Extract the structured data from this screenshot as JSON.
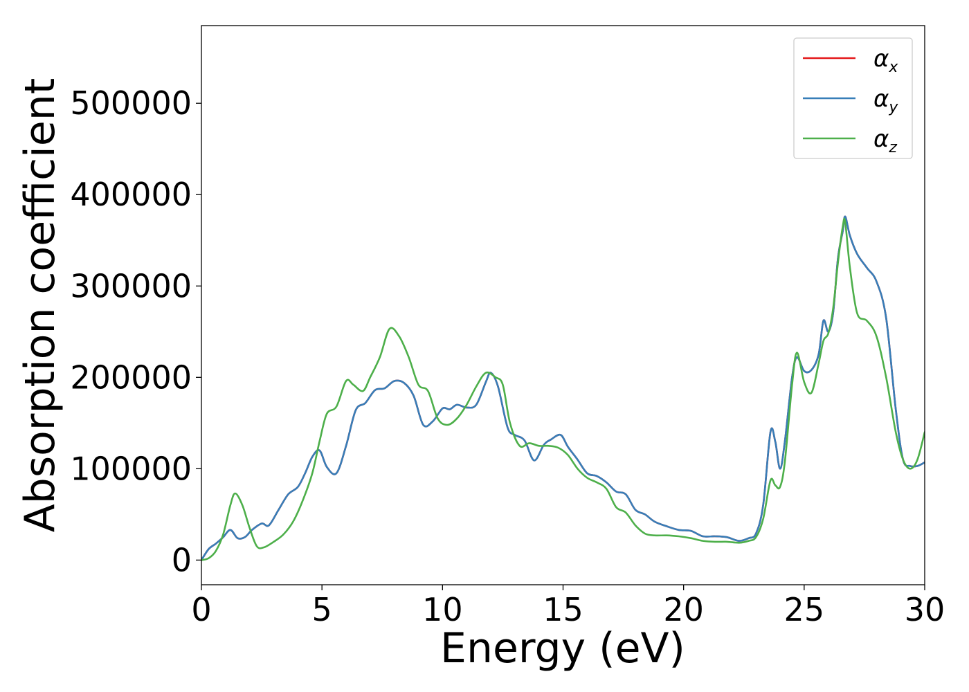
{
  "chart_data": {
    "type": "line",
    "title": "",
    "xlabel": "Energy (eV)",
    "ylabel": "Absorption coefficient",
    "xlim": [
      0,
      30
    ],
    "ylim": [
      -27000,
      585000
    ],
    "x_ticks": [
      0,
      5,
      10,
      15,
      20,
      25,
      30
    ],
    "y_ticks": [
      0,
      100000,
      200000,
      300000,
      400000,
      500000
    ],
    "grid": false,
    "legend_position": "top-right",
    "series": [
      {
        "name": "α_x",
        "legend_base": "α",
        "legend_sub": "x",
        "color": "#e41a1c",
        "x": [
          0,
          0.3,
          0.6,
          0.9,
          1.2,
          1.5,
          1.8,
          2.1,
          2.5,
          2.8,
          3.2,
          3.6,
          4.0,
          4.3,
          4.6,
          4.9,
          5.2,
          5.6,
          6.0,
          6.4,
          6.8,
          7.2,
          7.6,
          8.0,
          8.4,
          8.8,
          9.2,
          9.6,
          10.0,
          10.3,
          10.6,
          11.0,
          11.4,
          11.8,
          12.0,
          12.3,
          12.7,
          13.0,
          13.4,
          13.8,
          14.2,
          14.5,
          14.9,
          15.2,
          15.6,
          16.0,
          16.4,
          16.8,
          17.2,
          17.6,
          18.0,
          18.4,
          18.8,
          19.3,
          19.8,
          20.3,
          20.8,
          21.3,
          21.8,
          22.3,
          22.7,
          23.0,
          23.3,
          23.6,
          23.8,
          24.0,
          24.2,
          24.5,
          24.7,
          25.0,
          25.3,
          25.6,
          25.8,
          26.0,
          26.2,
          26.4,
          26.6,
          26.7,
          26.9,
          27.2,
          27.6,
          28.0,
          28.4,
          28.8,
          29.1,
          29.4,
          29.7,
          30.0
        ],
        "values": [
          0,
          12000,
          18000,
          25000,
          33000,
          24000,
          25000,
          33000,
          40000,
          38000,
          55000,
          72000,
          80000,
          95000,
          113000,
          120000,
          102000,
          95000,
          125000,
          164000,
          172000,
          186000,
          188000,
          196000,
          194000,
          180000,
          148000,
          152000,
          166000,
          165000,
          170000,
          167000,
          170000,
          195000,
          205000,
          190000,
          145000,
          137000,
          131000,
          109000,
          126000,
          132000,
          137000,
          124000,
          110000,
          95000,
          92000,
          85000,
          75000,
          72000,
          55000,
          50000,
          42000,
          37000,
          33000,
          32000,
          26000,
          26000,
          25000,
          21000,
          24000,
          29000,
          60000,
          140000,
          130000,
          100000,
          130000,
          200000,
          222000,
          207000,
          208000,
          225000,
          262000,
          250000,
          270000,
          330000,
          360000,
          376000,
          355000,
          335000,
          320000,
          305000,
          265000,
          165000,
          110000,
          103000,
          103000,
          107000
        ]
      },
      {
        "name": "α_y",
        "legend_base": "α",
        "legend_sub": "y",
        "color": "#377eb8",
        "x": [
          0,
          0.3,
          0.6,
          0.9,
          1.2,
          1.5,
          1.8,
          2.1,
          2.5,
          2.8,
          3.2,
          3.6,
          4.0,
          4.3,
          4.6,
          4.9,
          5.2,
          5.6,
          6.0,
          6.4,
          6.8,
          7.2,
          7.6,
          8.0,
          8.4,
          8.8,
          9.2,
          9.6,
          10.0,
          10.3,
          10.6,
          11.0,
          11.4,
          11.8,
          12.0,
          12.3,
          12.7,
          13.0,
          13.4,
          13.8,
          14.2,
          14.5,
          14.9,
          15.2,
          15.6,
          16.0,
          16.4,
          16.8,
          17.2,
          17.6,
          18.0,
          18.4,
          18.8,
          19.3,
          19.8,
          20.3,
          20.8,
          21.3,
          21.8,
          22.3,
          22.7,
          23.0,
          23.3,
          23.6,
          23.8,
          24.0,
          24.2,
          24.5,
          24.7,
          25.0,
          25.3,
          25.6,
          25.8,
          26.0,
          26.2,
          26.4,
          26.6,
          26.7,
          26.9,
          27.2,
          27.6,
          28.0,
          28.4,
          28.8,
          29.1,
          29.4,
          29.7,
          30.0
        ],
        "values": [
          0,
          12000,
          18000,
          25000,
          33000,
          24000,
          25000,
          33000,
          40000,
          38000,
          55000,
          72000,
          80000,
          95000,
          113000,
          120000,
          102000,
          95000,
          125000,
          164000,
          172000,
          186000,
          188000,
          196000,
          194000,
          180000,
          148000,
          152000,
          166000,
          165000,
          170000,
          167000,
          170000,
          195000,
          205000,
          190000,
          145000,
          137000,
          131000,
          109000,
          126000,
          132000,
          137000,
          124000,
          110000,
          95000,
          92000,
          85000,
          75000,
          72000,
          55000,
          50000,
          42000,
          37000,
          33000,
          32000,
          26000,
          26000,
          25000,
          21000,
          24000,
          29000,
          60000,
          140000,
          130000,
          100000,
          130000,
          200000,
          222000,
          207000,
          208000,
          225000,
          262000,
          250000,
          270000,
          330000,
          360000,
          376000,
          355000,
          335000,
          320000,
          305000,
          265000,
          165000,
          110000,
          103000,
          103000,
          107000
        ]
      },
      {
        "name": "α_z",
        "legend_base": "α",
        "legend_sub": "z",
        "color": "#4daf4a",
        "x": [
          0,
          0.3,
          0.6,
          0.9,
          1.2,
          1.4,
          1.7,
          2.0,
          2.3,
          2.6,
          3.0,
          3.4,
          3.8,
          4.2,
          4.6,
          4.9,
          5.2,
          5.6,
          6.0,
          6.3,
          6.7,
          7.0,
          7.4,
          7.8,
          8.2,
          8.6,
          9.0,
          9.4,
          9.8,
          10.2,
          10.6,
          11.0,
          11.4,
          11.8,
          12.2,
          12.5,
          12.8,
          13.2,
          13.6,
          14.0,
          14.4,
          14.8,
          15.2,
          15.6,
          16.0,
          16.4,
          16.8,
          17.2,
          17.6,
          18.0,
          18.4,
          18.8,
          19.3,
          19.8,
          20.3,
          20.8,
          21.3,
          21.8,
          22.3,
          22.7,
          23.0,
          23.3,
          23.6,
          23.8,
          24.0,
          24.2,
          24.5,
          24.7,
          25.0,
          25.3,
          25.6,
          25.8,
          26.0,
          26.2,
          26.4,
          26.6,
          26.7,
          26.9,
          27.2,
          27.6,
          28.0,
          28.4,
          28.8,
          29.1,
          29.4,
          29.7,
          30.0
        ],
        "values": [
          0,
          2000,
          10000,
          28000,
          60000,
          73000,
          60000,
          35000,
          15000,
          14000,
          20000,
          28000,
          42000,
          65000,
          95000,
          130000,
          160000,
          168000,
          196000,
          192000,
          185000,
          200000,
          222000,
          253000,
          245000,
          222000,
          192000,
          185000,
          155000,
          148000,
          155000,
          170000,
          190000,
          205000,
          200000,
          192000,
          150000,
          125000,
          128000,
          125000,
          125000,
          123000,
          115000,
          100000,
          90000,
          85000,
          78000,
          58000,
          52000,
          38000,
          29000,
          27000,
          27000,
          26000,
          24000,
          21000,
          20000,
          20000,
          19000,
          21000,
          25000,
          45000,
          87000,
          82000,
          80000,
          108000,
          192000,
          227000,
          195000,
          183000,
          215000,
          240000,
          248000,
          275000,
          325000,
          365000,
          370000,
          320000,
          270000,
          262000,
          245000,
          200000,
          140000,
          110000,
          100000,
          110000,
          140000
        ]
      }
    ]
  }
}
